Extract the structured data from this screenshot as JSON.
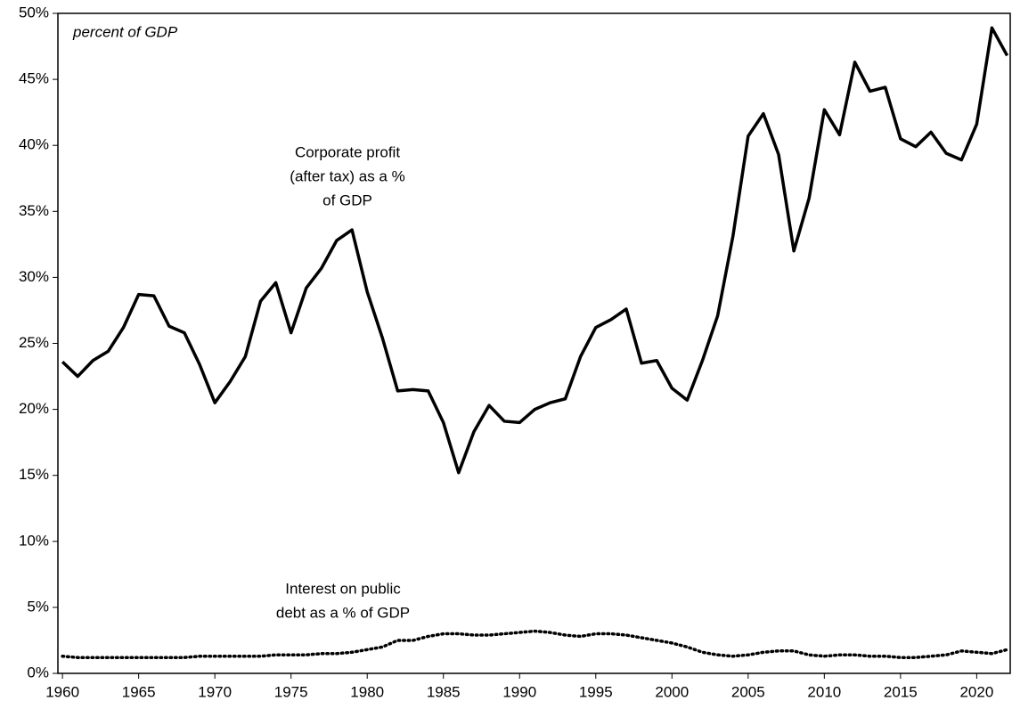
{
  "chart_data": {
    "type": "line",
    "annotations": [
      {
        "text": "percent of GDP",
        "italic": true
      },
      {
        "lines": [
          "Corporate profit",
          "(after tax) as a %",
          "of GDP"
        ]
      },
      {
        "lines": [
          "Interest on public",
          "debt as a % of GDP"
        ]
      }
    ],
    "x": [
      1960,
      1961,
      1962,
      1963,
      1964,
      1965,
      1966,
      1967,
      1968,
      1969,
      1970,
      1971,
      1972,
      1973,
      1974,
      1975,
      1976,
      1977,
      1978,
      1979,
      1980,
      1981,
      1982,
      1983,
      1984,
      1985,
      1986,
      1987,
      1988,
      1989,
      1990,
      1991,
      1992,
      1993,
      1994,
      1995,
      1996,
      1997,
      1998,
      1999,
      2000,
      2001,
      2002,
      2003,
      2004,
      2005,
      2006,
      2007,
      2008,
      2009,
      2010,
      2011,
      2012,
      2013,
      2014,
      2015,
      2016,
      2017,
      2018,
      2019,
      2020,
      2021,
      2022
    ],
    "series": [
      {
        "color": "#000000",
        "dash": "solid",
        "values": [
          23.6,
          22.5,
          23.7,
          24.4,
          26.2,
          28.7,
          28.6,
          26.3,
          25.8,
          23.4,
          20.5,
          22.1,
          24.0,
          28.2,
          29.6,
          25.8,
          29.2,
          30.7,
          32.8,
          33.6,
          28.9,
          25.4,
          21.4,
          21.5,
          21.4,
          19.0,
          15.2,
          18.3,
          20.3,
          19.1,
          19.0,
          20.0,
          20.5,
          20.8,
          24.0,
          26.2,
          26.8,
          27.6,
          23.5,
          23.7,
          21.6,
          20.7,
          23.7,
          27.1,
          33.1,
          40.7,
          42.4,
          39.3,
          32.0,
          36.0,
          42.7,
          40.8,
          46.3,
          44.1,
          44.4,
          40.5,
          39.9,
          41.0,
          39.4,
          38.9,
          41.6,
          48.9,
          46.8
        ]
      },
      {
        "color": "#000000",
        "dash": "dotted",
        "values": [
          1.3,
          1.2,
          1.2,
          1.2,
          1.2,
          1.2,
          1.2,
          1.2,
          1.2,
          1.3,
          1.3,
          1.3,
          1.3,
          1.3,
          1.4,
          1.4,
          1.4,
          1.5,
          1.5,
          1.6,
          1.8,
          2.0,
          2.5,
          2.5,
          2.8,
          3.0,
          3.0,
          2.9,
          2.9,
          3.0,
          3.1,
          3.2,
          3.1,
          2.9,
          2.8,
          3.0,
          3.0,
          2.9,
          2.7,
          2.5,
          2.3,
          2.0,
          1.6,
          1.4,
          1.3,
          1.4,
          1.6,
          1.7,
          1.7,
          1.4,
          1.3,
          1.4,
          1.4,
          1.3,
          1.3,
          1.2,
          1.2,
          1.3,
          1.4,
          1.7,
          1.6,
          1.5,
          1.8
        ]
      }
    ],
    "xlim": [
      1959.7,
      2022.2
    ],
    "xticks": [
      1960,
      1965,
      1970,
      1975,
      1980,
      1985,
      1990,
      1995,
      2000,
      2005,
      2010,
      2015,
      2020
    ],
    "ylim": [
      0,
      50
    ],
    "yticks": [
      {
        "value": 0,
        "label": "0%"
      },
      {
        "value": 5,
        "label": "5%"
      },
      {
        "value": 10,
        "label": "10%"
      },
      {
        "value": 15,
        "label": "15%"
      },
      {
        "value": 20,
        "label": "20%"
      },
      {
        "value": 25,
        "label": "25%"
      },
      {
        "value": 30,
        "label": "30%"
      },
      {
        "value": 35,
        "label": "35%"
      },
      {
        "value": 40,
        "label": "40%"
      },
      {
        "value": 45,
        "label": "45%"
      },
      {
        "value": 50,
        "label": "50%"
      }
    ],
    "grid": false
  }
}
